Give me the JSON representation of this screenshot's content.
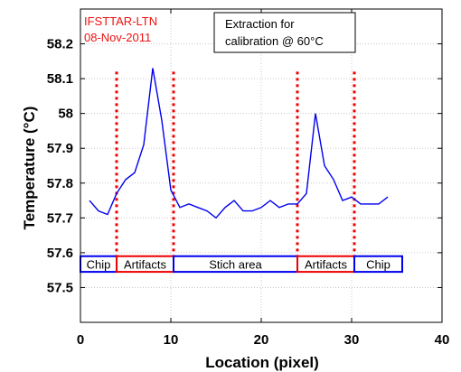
{
  "chart_data": {
    "type": "line",
    "xlabel": "Location (pixel)",
    "ylabel": "Temperature (°C)",
    "xlim": [
      0,
      40
    ],
    "ylim": [
      57.4,
      58.3
    ],
    "xticks": [
      "0",
      "10",
      "20",
      "30",
      "40"
    ],
    "yticks": [
      "57.5",
      "57.6",
      "57.7",
      "57.8",
      "57.9",
      "58",
      "58.1",
      "58.2"
    ],
    "grid": true,
    "series": [
      {
        "color": "#0000ee",
        "x": [
          1,
          2,
          3,
          4,
          5,
          6,
          7,
          8,
          9,
          10,
          11,
          12,
          13,
          14,
          15,
          16,
          17,
          18,
          19,
          20,
          21,
          22,
          23,
          24,
          25,
          26,
          27,
          28,
          29,
          30,
          31,
          32,
          33,
          34
        ],
        "y": [
          57.75,
          57.72,
          57.71,
          57.77,
          57.81,
          57.83,
          57.91,
          58.13,
          57.98,
          57.78,
          57.73,
          57.74,
          57.73,
          57.72,
          57.7,
          57.73,
          57.75,
          57.72,
          57.72,
          57.73,
          57.75,
          57.73,
          57.74,
          57.74,
          57.77,
          58.0,
          57.85,
          57.81,
          57.75,
          57.76,
          57.74,
          57.74,
          57.74,
          57.76
        ]
      }
    ],
    "vlines": {
      "x": [
        4,
        10.3,
        24,
        30.3
      ],
      "color": "#ee0000",
      "style": "dotted"
    },
    "annotation_stamp": {
      "line1": "IFSTTAR-LTN",
      "line2": "08-Nov-2011",
      "color": "#ee1111"
    },
    "info_box": {
      "line1": "Extraction for",
      "line2": "calibration @ 60°C"
    },
    "regions": [
      {
        "label": "Chip",
        "x0": 0,
        "x1": 4,
        "border": "#0000ee"
      },
      {
        "label": "Artifacts",
        "x0": 4,
        "x1": 10.3,
        "border": "#ee0000"
      },
      {
        "label": "Stich area",
        "x0": 10.3,
        "x1": 24,
        "border": "#0000ee"
      },
      {
        "label": "Artifacts",
        "x0": 24,
        "x1": 30.3,
        "border": "#ee0000"
      },
      {
        "label": "Chip",
        "x0": 30.3,
        "x1": 35.6,
        "border": "#0000ee"
      }
    ],
    "regions_y": [
      57.545,
      57.59
    ]
  }
}
